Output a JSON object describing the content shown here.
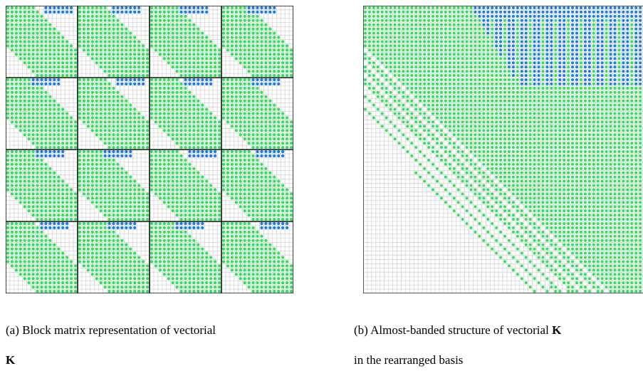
{
  "colors": {
    "grid": "#c9c9c9",
    "block_border": "#111111",
    "outer_border": "#555555",
    "green_dot": "#2fe05a",
    "blue_dot": "#1a7ce8"
  },
  "captions": {
    "a_line1": "(a)  Block matrix representation of vectorial",
    "a_line2": "K",
    "b_line1": "(b)  Almost-banded structure of vectorial ",
    "b_line1_bold": "K",
    "b_line2": "in the rearranged basis"
  },
  "matrices": {
    "a": {
      "blocks": 4,
      "cells_per_block": 17
    },
    "b": {
      "cells": 68
    }
  }
}
